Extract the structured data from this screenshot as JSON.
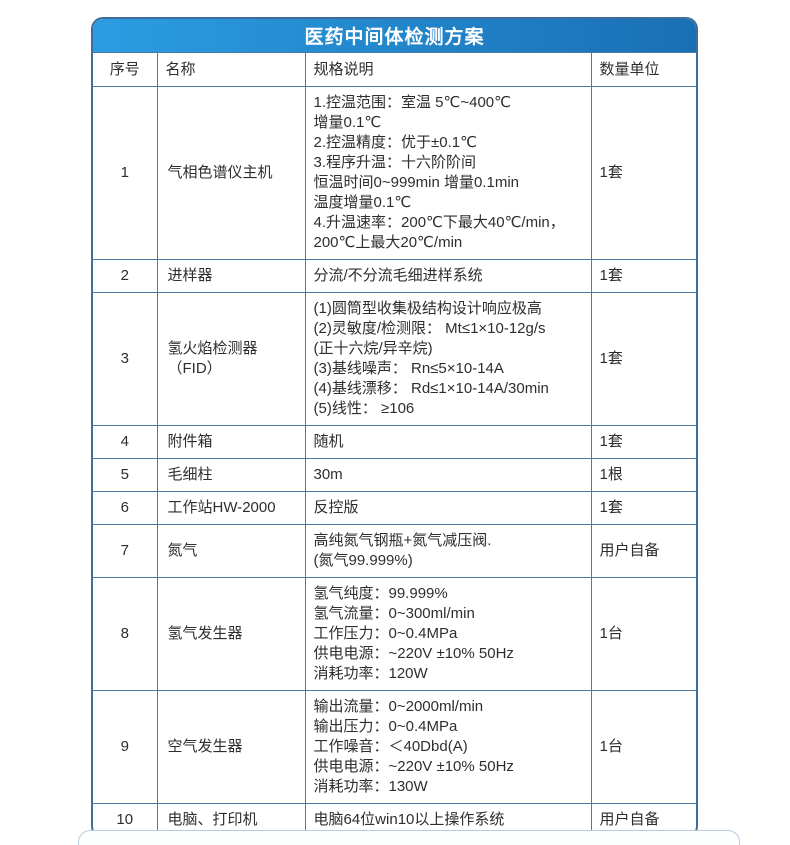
{
  "title": "医药中间体检测方案",
  "colors": {
    "accent_light": "#2b9de2",
    "accent_dark": "#1a6fb4",
    "outer_border": "#3f6d99",
    "grid_line": "#4d7aa3"
  },
  "table": {
    "headers": [
      "序号",
      "名称",
      "规格说明",
      "数量单位"
    ],
    "rows": [
      {
        "no": "1",
        "name": "气相色谱仪主机",
        "spec": "1.控温范围：室温 5℃~400℃\n增量0.1℃\n2.控温精度：优于±0.1℃\n3.程序升温：十六阶阶间\n恒温时间0~999min 增量0.1min\n温度增量0.1℃\n4.升温速率：200℃下最大40℃/min，\n200℃上最大20℃/min",
        "qty": "1套"
      },
      {
        "no": "2",
        "name": "进样器",
        "spec": "分流/不分流毛细进样系统",
        "qty": "1套"
      },
      {
        "no": "3",
        "name": "氢火焰检测器（FID）",
        "spec": "(1)圆筒型收集极结构设计响应极高\n(2)灵敏度/检测限： Mt≤1×10-12g/s\n(正十六烷/异辛烷)\n(3)基线噪声： Rn≤5×10-14A\n(4)基线漂移： Rd≤1×10-14A/30min\n(5)线性： ≥106",
        "qty": "1套"
      },
      {
        "no": "4",
        "name": "附件箱",
        "spec": "随机",
        "qty": "1套"
      },
      {
        "no": "5",
        "name": "毛细柱",
        "spec": "30m",
        "qty": "1根"
      },
      {
        "no": "6",
        "name": "工作站HW-2000",
        "spec": "反控版",
        "qty": "1套"
      },
      {
        "no": "7",
        "name": "氮气",
        "spec": "高纯氮气钢瓶+氮气减压阀.\n(氮气99.999%)",
        "qty": "用户自备"
      },
      {
        "no": "8",
        "name": "氢气发生器",
        "spec": "氢气纯度：99.999%\n氢气流量：0~300ml/min\n工作压力：0~0.4MPa\n供电电源：~220V ±10% 50Hz\n消耗功率：120W",
        "qty": "1台"
      },
      {
        "no": "9",
        "name": "空气发生器",
        "spec": "输出流量：0~2000ml/min\n输出压力：0~0.4MPa\n工作噪音：＜40Dbd(A)\n供电电源：~220V ±10% 50Hz\n消耗功率：130W",
        "qty": "1台"
      },
      {
        "no": "10",
        "name": "电脑、打印机",
        "spec": "电脑64位win10以上操作系统",
        "qty": "用户自备"
      }
    ]
  }
}
